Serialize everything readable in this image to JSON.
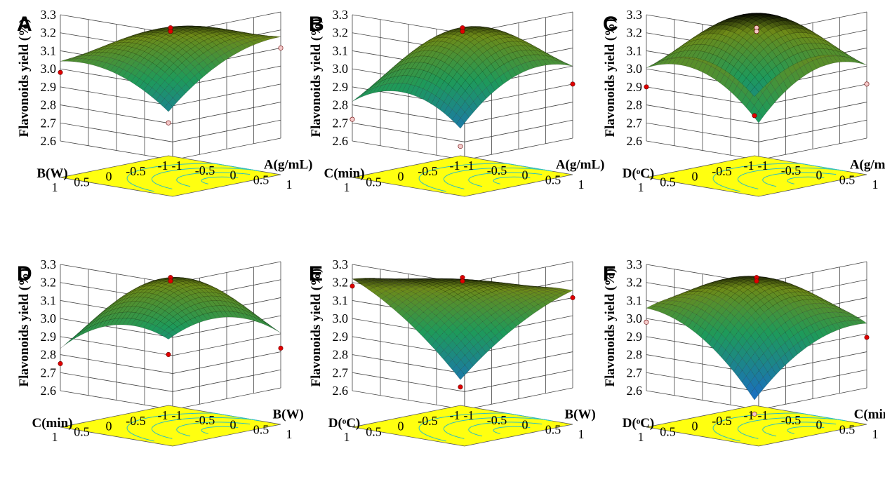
{
  "figure": {
    "panels": [
      {
        "letter": "A",
        "ylabel": "Flavonoids yield (%)",
        "x_label": "A(g/mL)",
        "y_label": "B(W)"
      },
      {
        "letter": "B",
        "ylabel": "Flavonoids yield (%)",
        "x_label": "A(g/mL)",
        "y_label": "C(min)"
      },
      {
        "letter": "C",
        "ylabel": "Flavonoids yield (%)",
        "x_label": "A(g/mL)",
        "y_label": "D(ᵒC)"
      },
      {
        "letter": "D",
        "ylabel": "Flavonoids yield (%)",
        "x_label": "B(W)",
        "y_label": "C(min)"
      },
      {
        "letter": "E",
        "ylabel": "Flavonoids yield (%)",
        "x_label": "B(W)",
        "y_label": "D(ᵒC)"
      },
      {
        "letter": "F",
        "ylabel": "Flavonoids yield (%)",
        "x_label": "C(min)",
        "y_label": "D(ᵒC)"
      }
    ],
    "colors": {
      "surface_high": "#000000",
      "surface_mid": "#6e8a18",
      "surface_low": "#1e9a5a",
      "surface_min": "#1a6fbf",
      "contour_floor": "#ffff10",
      "contour_line": "#2ec0c0",
      "point_red": "#e00000",
      "point_pink": "#f4c8c8"
    }
  },
  "chart_data": [
    {
      "type": "surface",
      "panel": "A",
      "zlabel": "Flavonoids yield (%)",
      "xlabel": "A(g/mL)",
      "ylabel": "B(W)",
      "x_ticks": [
        "-1",
        "-0.5",
        "0",
        "0.5",
        "1"
      ],
      "y_ticks": [
        "-1",
        "-0.5",
        "0",
        "0.5",
        "1"
      ],
      "z_ticks": [
        "2.6",
        "2.7",
        "2.8",
        "2.9",
        "3.0",
        "3.1",
        "3.2",
        "3.3"
      ],
      "xlim": [
        -1,
        1
      ],
      "ylim": [
        -1,
        1
      ],
      "zlim": [
        2.6,
        3.3
      ],
      "corners": {
        "xmin_ymin": 2.58,
        "xmax_ymin": 3.1,
        "xmin_ymax": 2.98,
        "xmax_ymax": 3.0
      },
      "center": 3.22,
      "points": [
        {
          "x": 0,
          "y": 0,
          "z": 3.22,
          "kind": "above"
        },
        {
          "x": 0,
          "y": 0,
          "z": 3.2,
          "kind": "above"
        },
        {
          "x": 1,
          "y": -1,
          "z": 3.1,
          "kind": "below"
        },
        {
          "x": -1,
          "y": 1,
          "z": 2.98,
          "kind": "above"
        },
        {
          "x": -1,
          "y": -1,
          "z": 2.58,
          "kind": "below"
        }
      ]
    },
    {
      "type": "surface",
      "panel": "B",
      "zlabel": "Flavonoids yield (%)",
      "xlabel": "A(g/mL)",
      "ylabel": "C(min)",
      "x_ticks": [
        "-1",
        "-0.5",
        "0",
        "0.5",
        "1"
      ],
      "y_ticks": [
        "-1",
        "-0.5",
        "0",
        "0.5",
        "1"
      ],
      "z_ticks": [
        "2.6",
        "2.7",
        "2.8",
        "2.9",
        "3.0",
        "3.1",
        "3.2",
        "3.3"
      ],
      "xlim": [
        -1,
        1
      ],
      "ylim": [
        -1,
        1
      ],
      "zlim": [
        2.6,
        3.3
      ],
      "corners": {
        "xmin_ymin": 2.45,
        "xmax_ymin": 2.9,
        "xmin_ymax": 2.72,
        "xmax_ymax": 2.85
      },
      "center": 3.22,
      "points": [
        {
          "x": 0,
          "y": 0,
          "z": 3.22,
          "kind": "above"
        },
        {
          "x": 0,
          "y": 0,
          "z": 3.2,
          "kind": "above"
        },
        {
          "x": 1,
          "y": -1,
          "z": 2.9,
          "kind": "above"
        },
        {
          "x": -1,
          "y": 1,
          "z": 2.72,
          "kind": "below"
        },
        {
          "x": -1,
          "y": -1,
          "z": 2.45,
          "kind": "below"
        }
      ]
    },
    {
      "type": "surface",
      "panel": "C",
      "zlabel": "Flavonoids yield (%)",
      "xlabel": "A(g/mL)",
      "ylabel": "D(ᵒC)",
      "x_ticks": [
        "-1",
        "-0.5",
        "0",
        "0.5",
        "1"
      ],
      "y_ticks": [
        "-1",
        "-0.5",
        "0",
        "0.5",
        "1"
      ],
      "z_ticks": [
        "2.6",
        "2.7",
        "2.8",
        "2.9",
        "3.0",
        "3.1",
        "3.2",
        "3.3"
      ],
      "xlim": [
        -1,
        1
      ],
      "ylim": [
        -1,
        1
      ],
      "zlim": [
        2.6,
        3.3
      ],
      "corners": {
        "xmin_ymin": 2.62,
        "xmax_ymin": 2.9,
        "xmin_ymax": 2.9,
        "xmax_ymax": 2.7
      },
      "center": 3.3,
      "points": [
        {
          "x": 0,
          "y": 0,
          "z": 3.22,
          "kind": "below"
        },
        {
          "x": 0,
          "y": 0,
          "z": 3.2,
          "kind": "below"
        },
        {
          "x": 1,
          "y": -1,
          "z": 2.9,
          "kind": "below"
        },
        {
          "x": -1,
          "y": 1,
          "z": 2.9,
          "kind": "above"
        },
        {
          "x": -1,
          "y": -1,
          "z": 2.62,
          "kind": "above"
        }
      ]
    },
    {
      "type": "surface",
      "panel": "D",
      "zlabel": "Flavonoids yield (%)",
      "xlabel": "B(W)",
      "ylabel": "C(min)",
      "x_ticks": [
        "-1",
        "-0.5",
        "0",
        "0.5",
        "1"
      ],
      "y_ticks": [
        "-1",
        "-0.5",
        "0",
        "0.5",
        "1"
      ],
      "z_ticks": [
        "2.6",
        "2.7",
        "2.8",
        "2.9",
        "3.0",
        "3.1",
        "3.2",
        "3.3"
      ],
      "xlim": [
        -1,
        1
      ],
      "ylim": [
        -1,
        1
      ],
      "zlim": [
        2.6,
        3.3
      ],
      "corners": {
        "xmin_ymin": 2.68,
        "xmax_ymin": 2.82,
        "xmin_ymax": 2.75,
        "xmax_ymax": 2.95
      },
      "center": 3.22,
      "points": [
        {
          "x": 0,
          "y": 0,
          "z": 3.22,
          "kind": "above"
        },
        {
          "x": 0,
          "y": 0,
          "z": 3.2,
          "kind": "above"
        },
        {
          "x": 1,
          "y": -1,
          "z": 2.82,
          "kind": "above"
        },
        {
          "x": -1,
          "y": 1,
          "z": 2.75,
          "kind": "above"
        },
        {
          "x": -1,
          "y": -1,
          "z": 2.68,
          "kind": "above"
        }
      ]
    },
    {
      "type": "surface",
      "panel": "E",
      "zlabel": "Flavonoids yield (%)",
      "xlabel": "B(W)",
      "ylabel": "D(ᵒC)",
      "x_ticks": [
        "-1",
        "-0.5",
        "0",
        "0.5",
        "1"
      ],
      "y_ticks": [
        "-1",
        "-0.5",
        "0",
        "0.5",
        "1"
      ],
      "z_ticks": [
        "2.6",
        "2.7",
        "2.8",
        "2.9",
        "3.0",
        "3.1",
        "3.2",
        "3.3"
      ],
      "xlim": [
        -1,
        1
      ],
      "ylim": [
        -1,
        1
      ],
      "zlim": [
        2.6,
        3.3
      ],
      "corners": {
        "xmin_ymin": 2.5,
        "xmax_ymin": 3.1,
        "xmin_ymax": 3.18,
        "xmax_ymax": 3.15
      },
      "center": 3.18,
      "points": [
        {
          "x": 0,
          "y": 0,
          "z": 3.22,
          "kind": "above"
        },
        {
          "x": 0,
          "y": 0,
          "z": 3.2,
          "kind": "above"
        },
        {
          "x": 1,
          "y": -1,
          "z": 3.1,
          "kind": "above"
        },
        {
          "x": -1,
          "y": 1,
          "z": 3.18,
          "kind": "above"
        },
        {
          "x": -1,
          "y": -1,
          "z": 2.5,
          "kind": "above"
        }
      ]
    },
    {
      "type": "surface",
      "panel": "F",
      "zlabel": "Flavonoids yield (%)",
      "xlabel": "C(min)",
      "ylabel": "D(ᵒC)",
      "x_ticks": [
        "-1",
        "-0.5",
        "0",
        "0.5",
        "1"
      ],
      "y_ticks": [
        "-1",
        "-0.5",
        "0",
        "0.5",
        "1"
      ],
      "z_ticks": [
        "2.6",
        "2.7",
        "2.8",
        "2.9",
        "3.0",
        "3.1",
        "3.2",
        "3.3"
      ],
      "xlim": [
        -1,
        1
      ],
      "ylim": [
        -1,
        1
      ],
      "zlim": [
        2.6,
        3.3
      ],
      "corners": {
        "xmin_ymin": 2.35,
        "xmax_ymin": 2.88,
        "xmin_ymax": 2.98,
        "xmax_ymax": 3.05
      },
      "center": 3.2,
      "points": [
        {
          "x": 0,
          "y": 0,
          "z": 3.22,
          "kind": "above"
        },
        {
          "x": 0,
          "y": 0,
          "z": 3.2,
          "kind": "above"
        },
        {
          "x": 1,
          "y": -1,
          "z": 2.88,
          "kind": "above"
        },
        {
          "x": -1,
          "y": 1,
          "z": 2.98,
          "kind": "below"
        },
        {
          "x": -1,
          "y": -1,
          "z": 2.35,
          "kind": "below"
        }
      ]
    }
  ]
}
